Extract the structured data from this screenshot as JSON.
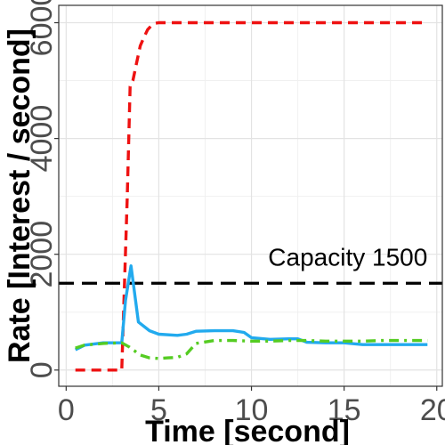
{
  "chart_data": {
    "type": "line",
    "title": "",
    "xlabel": "Time [second]",
    "ylabel": "Rate [Interest / second]",
    "xlim": [
      -0.4,
      20.3
    ],
    "ylim": [
      -280,
      6300
    ],
    "x_ticks": [
      0,
      5,
      10,
      15,
      20
    ],
    "y_ticks": [
      0,
      2000,
      4000,
      6000
    ],
    "grid": true,
    "legend": "none",
    "annotations": [
      {
        "text": "Capacity 1500",
        "x": 15.2,
        "y": 1800
      }
    ],
    "hlines": [
      {
        "y": 1500,
        "color": "#000000",
        "style": "dashed"
      }
    ],
    "series": [
      {
        "color": "#ee1111",
        "style": "dashed",
        "x": [
          0.5,
          1.0,
          2.0,
          3.0,
          3.15,
          3.3,
          3.45,
          3.6,
          3.8,
          4.0,
          4.2,
          4.4,
          4.6,
          4.8,
          5.0,
          6.0,
          8.0,
          10.0,
          12.0,
          14.0,
          16.0,
          18.0,
          19.5
        ],
        "y": [
          0,
          0,
          0,
          0,
          1500,
          3000,
          4900,
          5000,
          5300,
          5600,
          5750,
          5880,
          5950,
          5990,
          6000,
          6000,
          6000,
          6000,
          6000,
          6000,
          6000,
          6000,
          6000
        ]
      },
      {
        "color": "#22aaee",
        "style": "solid",
        "x": [
          0.5,
          1.0,
          2.0,
          3.0,
          3.2,
          3.5,
          3.9,
          4.5,
          5.0,
          6.0,
          6.5,
          7.0,
          8.0,
          9.0,
          9.6,
          10.0,
          11.0,
          12.0,
          12.5,
          13.0,
          14.0,
          15.0,
          16.0,
          17.0,
          18.0,
          19.5
        ],
        "y": [
          350,
          430,
          470,
          470,
          1200,
          1800,
          830,
          680,
          620,
          600,
          620,
          670,
          680,
          680,
          650,
          560,
          530,
          540,
          540,
          480,
          470,
          470,
          440,
          440,
          440,
          440
        ]
      },
      {
        "color": "#55cc22",
        "style": "dotdash",
        "x": [
          0.5,
          1.0,
          2.0,
          3.0,
          3.4,
          4.0,
          4.5,
          5.0,
          5.5,
          6.0,
          6.5,
          7.0,
          8.0,
          9.0,
          10.0,
          11.0,
          12.0,
          13.0,
          14.0,
          15.0,
          16.0,
          17.0,
          18.0,
          19.5
        ],
        "y": [
          380,
          430,
          460,
          470,
          400,
          260,
          210,
          200,
          210,
          220,
          280,
          460,
          510,
          510,
          500,
          500,
          510,
          510,
          500,
          500,
          500,
          510,
          510,
          510
        ]
      }
    ]
  }
}
